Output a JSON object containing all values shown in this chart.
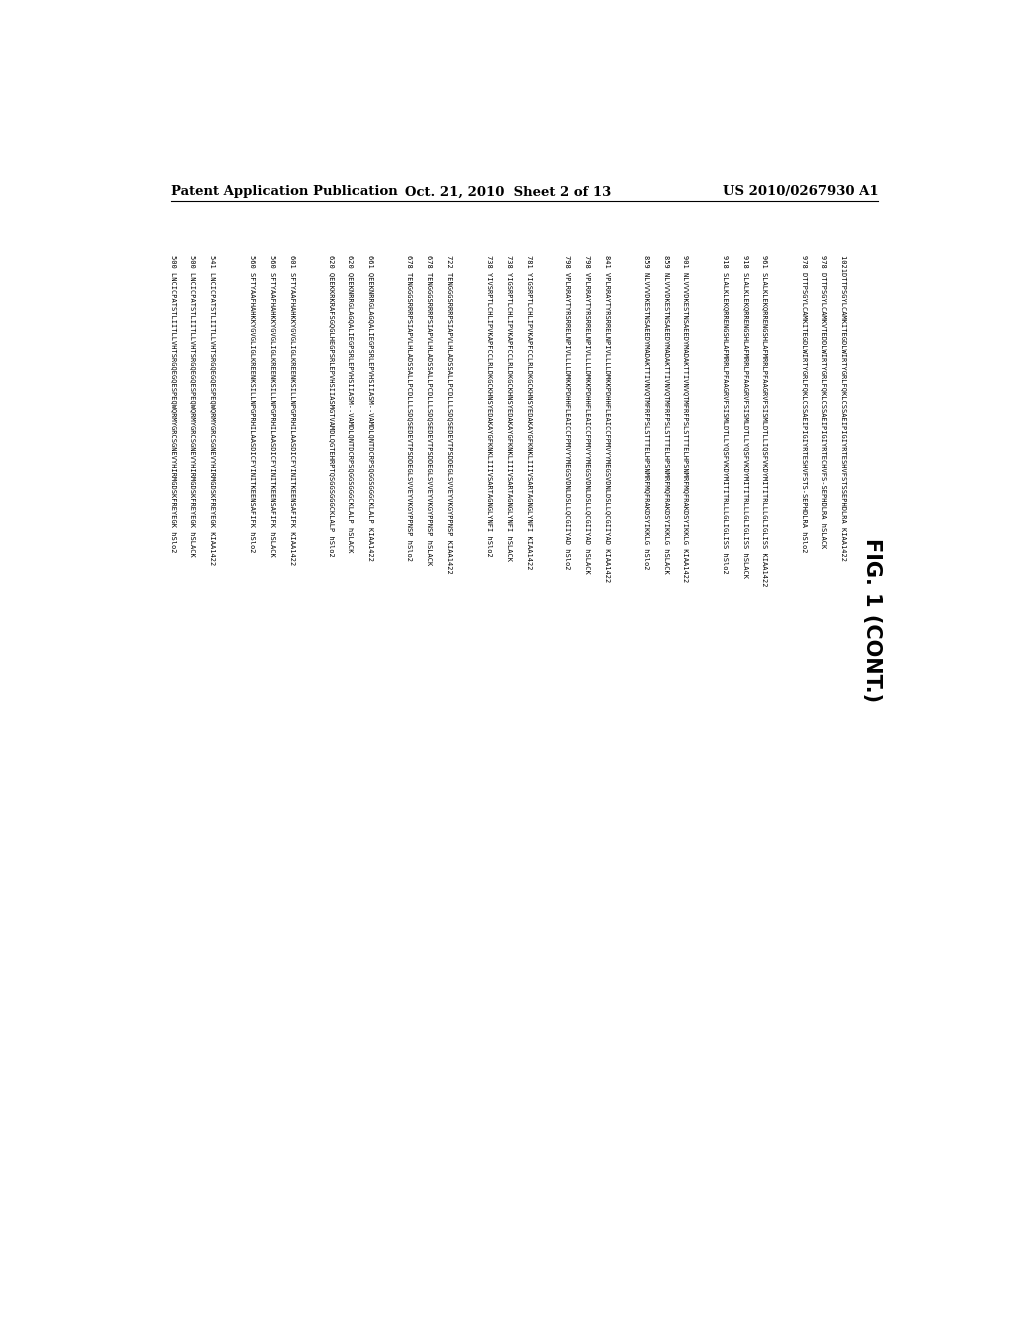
{
  "header_left": "Patent Application Publication",
  "header_center": "Oct. 21, 2010  Sheet 2 of 13",
  "header_right": "US 2010/0267930 A1",
  "fig_label": "FIG. 1 (CONT.)",
  "background_color": "#ffffff",
  "text_color": "#000000",
  "alignment_groups": [
    {
      "lines": [
        "500 LNCICPATSTLIITLLVHTSRGQEGQESPEQWQRMYGRCSGNEVYHIRMGDSKFREYEGK hSlo2",
        "500 LNCICPATSTLIITLLVHTSRGQEGQESPEQWQRMYGRCSGNEVYHIRMGDSKFREYEGK hSLACK",
        "541 LNCICPATSTLIITLLVHTSRGQEGQESPEQWQRMYGRCSGNEVYHIRMGDSKFREYEGK KIAA1422"
      ]
    },
    {
      "lines": [
        "560 SFTYAAFHAHKKYGVGLIGLKREENKSILLNPGPRHILAASDICFYINITKEENSAFIFK hSlo2",
        "560 SFTYAAFHAHKKYGVGLIGLKREENKSILLNPGPRHILAASDICFYINITKEENSAFIFK hSLACK",
        "601 SFTYAAFHAHKKYGVGLIGLKREENKSILLNPGPRHILAASDICFYINITKEENSAFIFK KIAA1422"
      ]
    },
    {
      "lines": [
        "620 QEEKKRKRAFSGQGLHEGPSRLEPVHSIIASMGTVAMDLQGTEHRPTQSGGSGGGCKLALP hSlo2",
        "620 QEEKNRRGLAGQALIEGPSRLEPVHSIIASM--VAMDLQNTDCRPSQGGSGGGCKLALP hSLACK",
        "661 QEEKNRRGLAGQALIEGPSRLEPVHSIIASM--VAMDLQNTDCRPSQGGSGGGCKLALP KIAA1422"
      ]
    },
    {
      "lines": [
        "678 TENGGGSRRRPSIAPVLHLADSSALLPCDLLLSDQSEDEVTPSDDEGLSVVEYVKGYPPNSP hSlo2",
        "678 TENGGGSRRRPSIAPVLHLADSSALLPCDLLLSDQSEDEVTPSDDEGLSVVEYVKGYPPNSP hSLACK",
        "722 TENGGGSRRRPSIAPVLHLADSSALLPCDLLLSDQSEDEVTPSDDEGLSVVEYVKGYPPNSP KIAA1422"
      ]
    },
    {
      "lines": [
        "738 YIVSRPTLCHLIPVKAPFCCLRLDKGCKHNSYEDAKAYGFKNKLIIIVSARTAGNGLYNFI hSlo2",
        "738 YIGSRPTLCHLIPVKAPFCCLRLDKGCKHNSYEDAKAYGFKNKLIIIVSARTAGNGLYNFI hSLACK",
        "781 YIGSRPTLCHLIPVKAPFCCLRLDKGCKHNSYEDAKAYGFKNKLIIIVSARTAGNGLYNFI KIAA1422"
      ]
    },
    {
      "lines": [
        "798 VPLRRAYTYRSRRELNPIVLLLLDMKKPDHHFLEAICCFPMVYYMEGSVDNLDSLLQCGIIYAD hSlo2",
        "798 VPLRRAYTYRSRRELNPIVLLLLDMKKPDHHFLEAICCFPMVYYMEGSVDNLDSLLQCGIIYAD hSLACK",
        "841 VPLRRAYTYRSRRELNPIVLLLLDMKKPDHHFLEAICCFPMVYYMEGSVDNLDSLLQCGIIYAD KIAA1422"
      ]
    },
    {
      "lines": [
        "859 NLVVVDKESTNSAEEDYMADAKTTIVNVQTMFRFPSLSTTTELHPSNMRFMQFRAKDSYIKKLG hSlo2",
        "859 NLVVVDKESTNSAEEDYMADAKTTIVNVQTMFRFPSLSTTTELHPSNMRFMQFRAKDSYIKKLG hSLACK",
        "901 NLVVVDKESTNSAEEDYMADAKTTIVNVQTMFRFPSLSTTTELHPSNMRFMQFRAKDSYIKKLG KIAA1422"
      ]
    },
    {
      "lines": [
        "918 SLALKLEKQRRENGSHLAFMRRLPFAAGRVFSISMLDTLLYQSFVKDYMITITRLLLGLIGLISS hSlo2",
        "918 SLALKLEKQRRENGSHLAFMRRLPFAAGRVFSISMLDTLLYQSFVKDYMITITRLLLGLIGLISS hSLACK",
        "961 SLALKLEKQRRENGSHLAFMRRLPFAAGRVFSISMLDTLLIQSFVKDYMITITRLLLGLIGLISS KIAA1422"
      ]
    },
    {
      "lines": [
        "978 DTTPSGYLCAMKITEGDLWIRTYGRLFQKLCSSAEIPIGIYRTESHVFSTS-SEPHDLRA hSlo2",
        "978 DTTPSGYLCAMKVTEDDLWIRTYGRLFQKLCSSAEIPIGIYRTECHVFS-SEPHDLRA hSLACK",
        "1021DTTPSGYLCAMKITEGDLWIRTYGRLFQKLCSSAEIPIGIYRTESHVFSTSSEPHDLRA KIAA1422"
      ]
    }
  ]
}
